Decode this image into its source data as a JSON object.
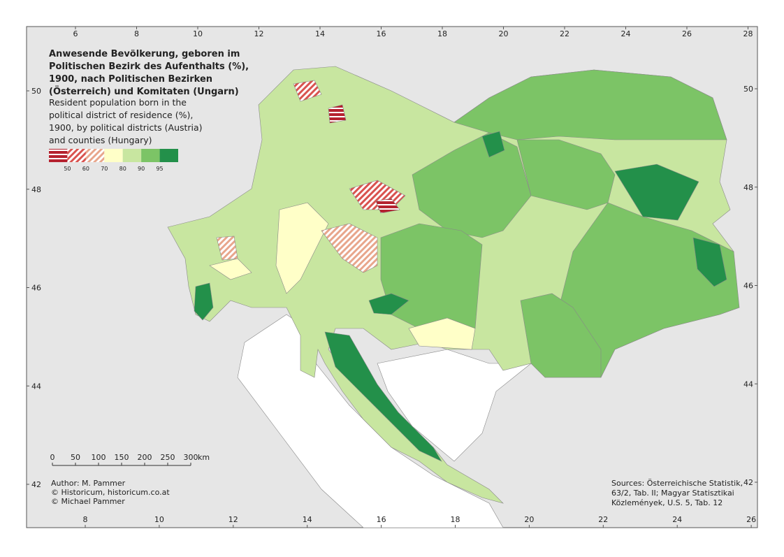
{
  "map": {
    "title": [
      "Anwesende Bevölkerung, geboren im",
      "Politischen Bezirk des Aufenthalts (%),",
      "1900, nach Politischen Bezirken",
      "(Österreich) und Komitaten (Ungarn)"
    ],
    "subtitle": [
      "Resident population born in the",
      "political district of residence (%),",
      "1900, by political districts (Austria)",
      "and counties (Hungary)"
    ],
    "legend": {
      "breaks": [
        50,
        60,
        70,
        80,
        90,
        95
      ],
      "colors": [
        "#b5222f",
        "#d9534f",
        "#e8a68c",
        "#ffffc8",
        "#c8e6a0",
        "#7cc466",
        "#23904a"
      ]
    },
    "scale_bar": {
      "ticks": [
        0,
        50,
        100,
        150,
        200,
        250,
        300
      ],
      "unit": "km"
    },
    "author": [
      "Author: M. Pammer",
      "© Historicum, historicum.co.at",
      "© Michael Pammer"
    ],
    "sources": [
      "Sources: Österreichische Statistik,",
      "63/2, Tab. II; Magyar Statisztikai",
      "Közlemények, U.S. 5, Tab. 12"
    ],
    "top_ticks": [
      6,
      8,
      10,
      12,
      14,
      16,
      18,
      20,
      22,
      24,
      26,
      28
    ],
    "bottom_ticks": [
      8,
      10,
      12,
      14,
      16,
      18,
      20,
      22,
      24,
      26
    ],
    "left_ticks": [
      50,
      48,
      46,
      44,
      42
    ],
    "right_ticks": [
      50,
      48,
      46,
      44,
      42
    ]
  }
}
